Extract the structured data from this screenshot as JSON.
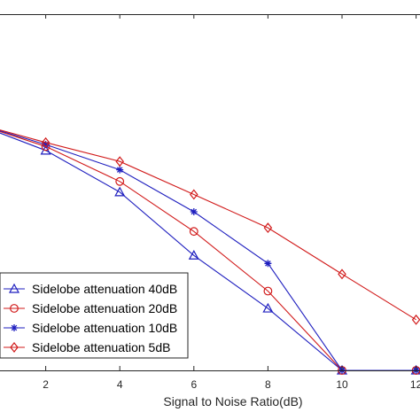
{
  "chart_data": {
    "type": "line",
    "xlabel": "Signal to Noise Ratio(dB)",
    "x_ticks": [
      "2",
      "4",
      "6",
      "8",
      "10",
      "12"
    ],
    "xlim": [
      0,
      12
    ],
    "ylim": [
      0,
      1
    ],
    "grid": false,
    "legend_position": "lower-left",
    "x": [
      0,
      2,
      4,
      6,
      8,
      10,
      12
    ],
    "series": [
      {
        "name": "Sidelobe attenuation 40dB",
        "color": "#1f1fbf",
        "marker": "triangle",
        "values": [
          0.745,
          0.66,
          0.535,
          0.345,
          0.186,
          0.0,
          0.0
        ]
      },
      {
        "name": "Sidelobe attenuation 20dB",
        "color": "#d11a1a",
        "marker": "circle",
        "values": [
          0.745,
          0.672,
          0.567,
          0.417,
          0.238,
          0.0,
          0.0
        ]
      },
      {
        "name": "Sidelobe attenuation 10dB",
        "color": "#1f1fbf",
        "marker": "star",
        "values": [
          0.745,
          0.678,
          0.602,
          0.476,
          0.321,
          0.0,
          0.0
        ]
      },
      {
        "name": "Sidelobe attenuation 5dB",
        "color": "#d11a1a",
        "marker": "diamond",
        "values": [
          0.745,
          0.684,
          0.627,
          0.528,
          0.428,
          0.289,
          0.152
        ]
      }
    ]
  }
}
